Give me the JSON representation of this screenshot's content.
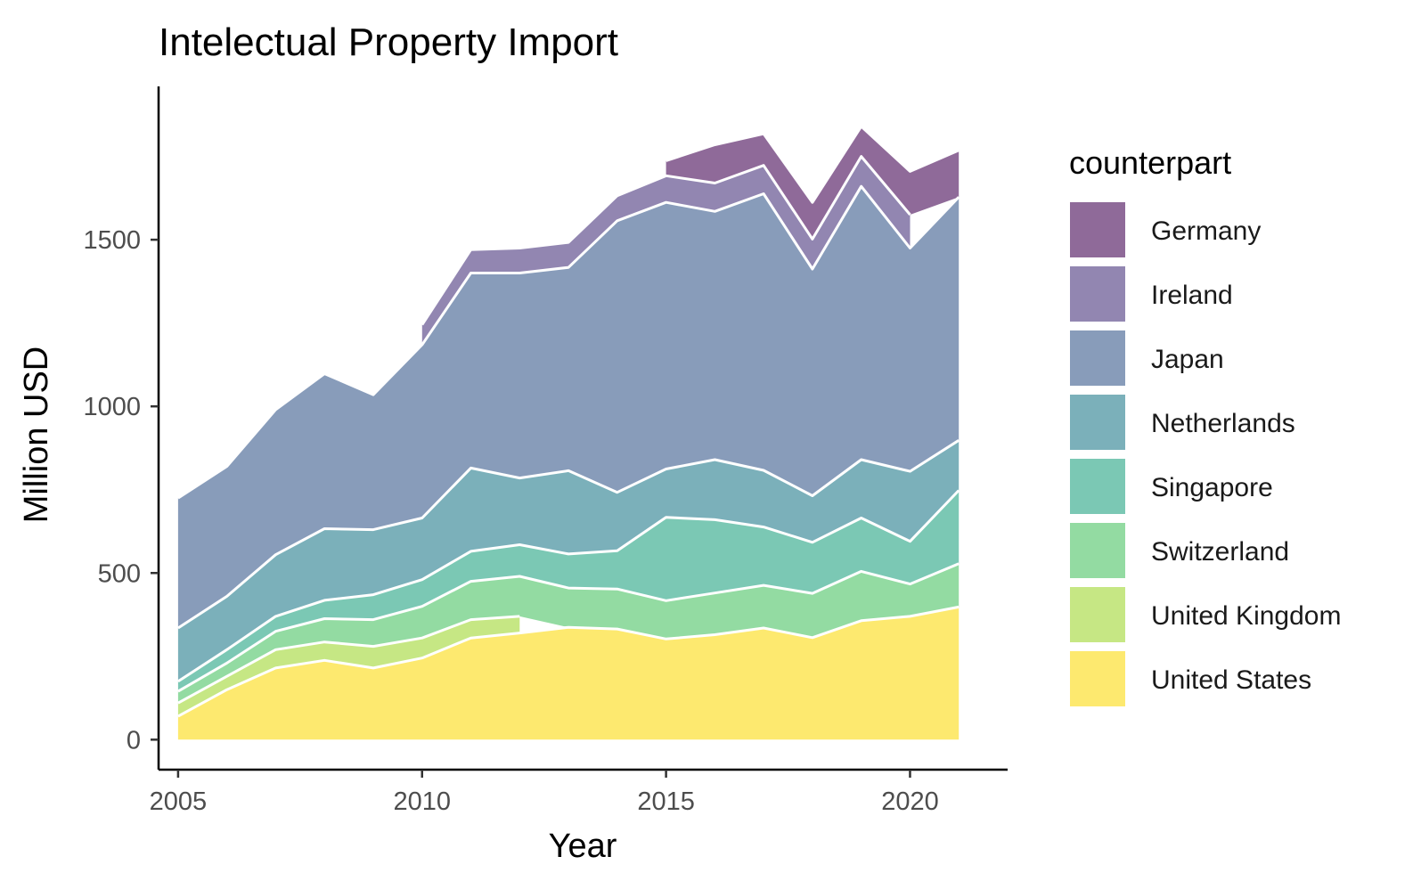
{
  "chart_data": {
    "type": "area",
    "stacked": true,
    "title": "Intelectual Property Import",
    "xlabel": "Year",
    "ylabel": "Million USD",
    "xlim": [
      2004.6,
      2022.0
    ],
    "ylim": [
      -90,
      1960
    ],
    "x_ticks": [
      2005,
      2010,
      2015,
      2020
    ],
    "y_ticks": [
      0,
      500,
      1000,
      1500
    ],
    "grid": false,
    "legend": {
      "title": "counterpart",
      "position": "right",
      "entries": [
        "Germany",
        "Ireland",
        "Japan",
        "Netherlands",
        "Singapore",
        "Switzerland",
        "United Kingdom",
        "United States"
      ]
    },
    "x": [
      2005,
      2006,
      2007,
      2008,
      2009,
      2010,
      2011,
      2012,
      2013,
      2014,
      2015,
      2016,
      2017,
      2018,
      2019,
      2020,
      2021
    ],
    "series": [
      {
        "name": "United States",
        "color": "#FDE96F",
        "values": [
          70,
          150,
          215,
          238,
          215,
          245,
          305,
          320,
          337,
          332,
          302,
          315,
          335,
          306,
          357,
          370,
          398
        ]
      },
      {
        "name": "United Kingdom",
        "color": "#C6E784",
        "values": [
          40,
          40,
          55,
          55,
          65,
          60,
          55,
          50,
          null,
          null,
          null,
          null,
          null,
          null,
          null,
          null,
          null
        ]
      },
      {
        "name": "Switzerland",
        "color": "#93DBA2",
        "values": [
          35,
          40,
          55,
          70,
          80,
          95,
          115,
          120,
          118,
          120,
          115,
          125,
          128,
          133,
          148,
          97,
          130
        ]
      },
      {
        "name": "Singapore",
        "color": "#7BC8B4",
        "values": [
          30,
          40,
          45,
          55,
          75,
          80,
          90,
          95,
          102,
          115,
          250,
          220,
          175,
          153,
          160,
          128,
          220
        ]
      },
      {
        "name": "Netherlands",
        "color": "#7BB0BA",
        "values": [
          160,
          160,
          185,
          215,
          195,
          185,
          250,
          200,
          250,
          175,
          145,
          180,
          170,
          140,
          175,
          210,
          150
        ]
      },
      {
        "name": "Japan",
        "color": "#889CBA",
        "values": [
          390,
          390,
          435,
          465,
          405,
          520,
          585,
          615,
          610,
          815,
          800,
          745,
          830,
          680,
          820,
          670,
          730
        ]
      },
      {
        "name": "Ireland",
        "color": "#9286B1",
        "values": [
          null,
          null,
          null,
          null,
          null,
          60,
          70,
          75,
          75,
          75,
          80,
          85,
          85,
          90,
          90,
          100,
          null
        ]
      },
      {
        "name": "Germany",
        "color": "#8F6A99",
        "values": [
          null,
          null,
          null,
          null,
          null,
          null,
          null,
          null,
          null,
          null,
          45,
          115,
          95,
          110,
          90,
          130,
          140
        ]
      }
    ]
  }
}
